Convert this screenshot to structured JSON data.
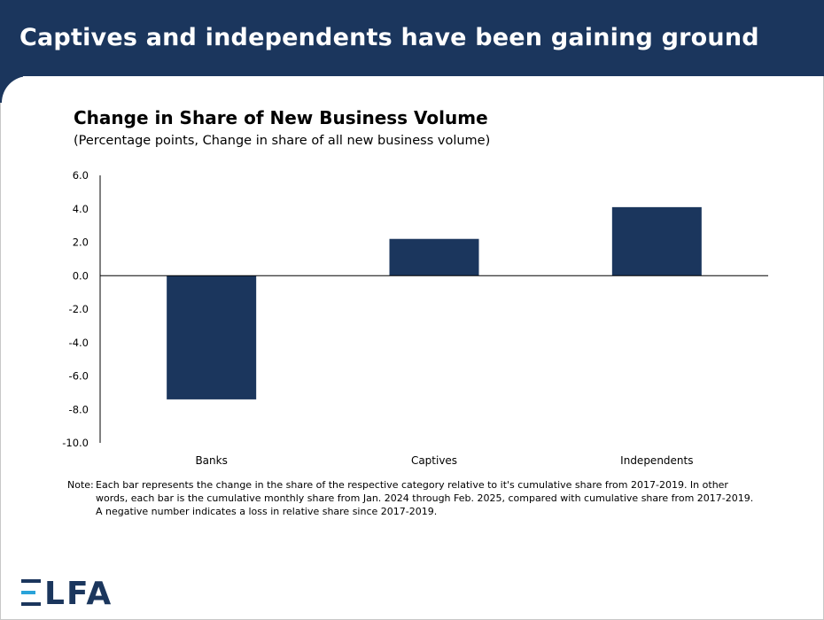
{
  "header": {
    "title": "Captives and independents have been gaining ground"
  },
  "colors": {
    "brand": "#1b365d",
    "bar": "#1b365d",
    "logo_accent": "#29a3d9"
  },
  "chart_data": {
    "type": "bar",
    "title": "Change in Share of New Business Volume",
    "subtitle": "(Percentage points, Change in share of all new business volume)",
    "categories": [
      "Banks",
      "Captives",
      "Independents"
    ],
    "values": [
      -7.4,
      2.2,
      4.1
    ],
    "ylim": [
      -10.0,
      6.0
    ],
    "yticks": [
      "6.0",
      "4.0",
      "2.0",
      "0.0",
      "-2.0",
      "-4.0",
      "-6.0",
      "-8.0",
      "-10.0"
    ],
    "ytick_values": [
      6,
      4,
      2,
      0,
      -2,
      -4,
      -6,
      -8,
      -10
    ],
    "grid": false,
    "legend": "none"
  },
  "note": {
    "prefix": "Note:",
    "text": "Each bar represents the change in the share of the respective category relative to it's cumulative share from 2017-2019. In other words, each bar is the cumulative monthly share from Jan. 2024 through Feb. 2025, compared with cumulative share from 2017-2019. A negative number indicates a loss in relative share since 2017-2019."
  },
  "logo": {
    "text": "LFA"
  }
}
